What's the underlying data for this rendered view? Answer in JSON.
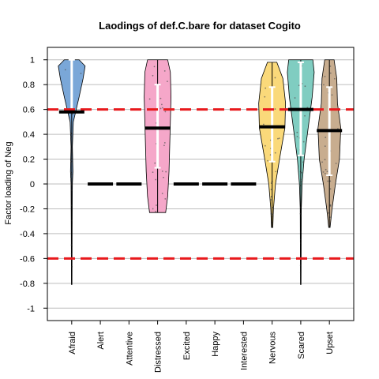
{
  "chart_data": {
    "type": "violin",
    "title": "Laodings of def.C.bare for dataset Cogito",
    "xlabel": "",
    "ylabel": "Factor loading of Neg",
    "ylim": [
      -1.1,
      1.1
    ],
    "yticks": [
      "1",
      "0.8",
      "0.6",
      "0.4",
      "0.2",
      "0",
      "-0.2",
      "-0.4",
      "-0.6",
      "-0.8",
      "-1"
    ],
    "ytick_values": [
      1,
      0.8,
      0.6,
      0.4,
      0.2,
      0,
      -0.2,
      -0.4,
      -0.6,
      -0.8,
      -1
    ],
    "reference_lines": [
      0.6,
      -0.6
    ],
    "grid": true,
    "categories": [
      "Afraid",
      "Alert",
      "Attentive",
      "Distressed",
      "Excited",
      "Happy",
      "Interested",
      "Nervous",
      "Scared",
      "Upset"
    ],
    "series": [
      {
        "category": "Afraid",
        "color": "#7aa7d8",
        "median": 0.58,
        "range": [
          -0.81,
          1.0
        ],
        "q1": 0.58,
        "q3": 1.0,
        "profile": [
          [
            -0.81,
            0.02
          ],
          [
            -0.4,
            0.03
          ],
          [
            0.0,
            0.05
          ],
          [
            0.1,
            0.09
          ],
          [
            0.3,
            0.05
          ],
          [
            0.5,
            0.12
          ],
          [
            0.7,
            0.55
          ],
          [
            0.85,
            0.85
          ],
          [
            0.95,
            1.0
          ],
          [
            1.0,
            0.55
          ]
        ]
      },
      {
        "category": "Alert",
        "color": "#000000",
        "median": 0.0
      },
      {
        "category": "Attentive",
        "color": "#000000",
        "median": 0.0
      },
      {
        "category": "Distressed",
        "color": "#f5a7c9",
        "median": 0.45,
        "range": [
          -0.23,
          1.0
        ],
        "q1": 0.13,
        "q3": 0.8,
        "profile": [
          [
            -0.23,
            0.6
          ],
          [
            -0.1,
            0.75
          ],
          [
            0.1,
            0.85
          ],
          [
            0.3,
            0.9
          ],
          [
            0.5,
            0.95
          ],
          [
            0.7,
            1.0
          ],
          [
            0.9,
            0.95
          ],
          [
            1.0,
            0.75
          ]
        ]
      },
      {
        "category": "Excited",
        "color": "#000000",
        "median": 0.0
      },
      {
        "category": "Happy",
        "color": "#000000",
        "median": 0.0
      },
      {
        "category": "Interested",
        "color": "#000000",
        "median": 0.0
      },
      {
        "category": "Nervous",
        "color": "#fad97a",
        "median": 0.46,
        "range": [
          -0.35,
          0.98
        ],
        "q1": 0.18,
        "q3": 0.78,
        "profile": [
          [
            -0.35,
            0.05
          ],
          [
            -0.2,
            0.1
          ],
          [
            0.0,
            0.25
          ],
          [
            0.2,
            0.55
          ],
          [
            0.45,
            0.95
          ],
          [
            0.65,
            1.0
          ],
          [
            0.85,
            0.8
          ],
          [
            0.98,
            0.35
          ]
        ]
      },
      {
        "category": "Scared",
        "color": "#80cdc1",
        "median": 0.6,
        "range": [
          -0.81,
          1.0
        ],
        "q1": 0.23,
        "q3": 0.98,
        "profile": [
          [
            -0.81,
            0.02
          ],
          [
            -0.2,
            0.04
          ],
          [
            0.0,
            0.1
          ],
          [
            0.2,
            0.25
          ],
          [
            0.45,
            0.55
          ],
          [
            0.7,
            0.85
          ],
          [
            0.9,
            1.0
          ],
          [
            1.0,
            0.9
          ]
        ]
      },
      {
        "category": "Upset",
        "color": "#c8ad8f",
        "median": 0.43,
        "range": [
          -0.35,
          1.0
        ],
        "q1": 0.07,
        "q3": 0.78,
        "profile": [
          [
            -0.35,
            0.05
          ],
          [
            -0.2,
            0.2
          ],
          [
            0.0,
            0.45
          ],
          [
            0.2,
            0.75
          ],
          [
            0.45,
            0.85
          ],
          [
            0.65,
            0.6
          ],
          [
            0.85,
            0.55
          ],
          [
            1.0,
            0.35
          ]
        ]
      }
    ]
  }
}
